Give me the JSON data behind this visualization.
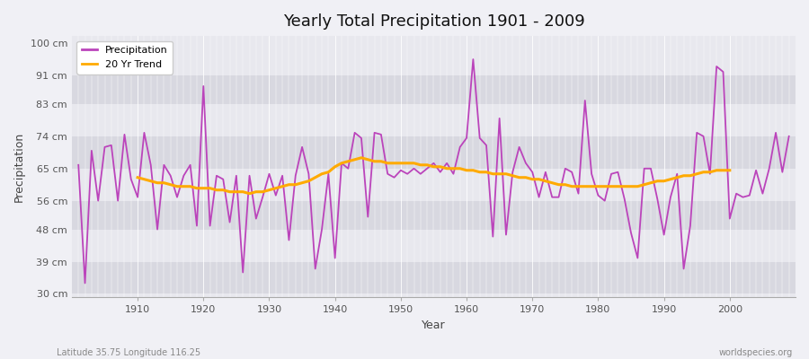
{
  "title": "Yearly Total Precipitation 1901 - 2009",
  "xlabel": "Year",
  "ylabel": "Precipitation",
  "subtitle_left": "Latitude 35.75 Longitude 116.25",
  "subtitle_right": "worldspecies.org",
  "years": [
    1901,
    1902,
    1903,
    1904,
    1905,
    1906,
    1907,
    1908,
    1909,
    1910,
    1911,
    1912,
    1913,
    1914,
    1915,
    1916,
    1917,
    1918,
    1919,
    1920,
    1921,
    1922,
    1923,
    1924,
    1925,
    1926,
    1927,
    1928,
    1929,
    1930,
    1931,
    1932,
    1933,
    1934,
    1935,
    1936,
    1937,
    1938,
    1939,
    1940,
    1941,
    1942,
    1943,
    1944,
    1945,
    1946,
    1947,
    1948,
    1949,
    1950,
    1951,
    1952,
    1953,
    1954,
    1955,
    1956,
    1957,
    1958,
    1959,
    1960,
    1961,
    1962,
    1963,
    1964,
    1965,
    1966,
    1967,
    1968,
    1969,
    1970,
    1971,
    1972,
    1973,
    1974,
    1975,
    1976,
    1977,
    1978,
    1979,
    1980,
    1981,
    1982,
    1983,
    1984,
    1985,
    1986,
    1987,
    1988,
    1989,
    1990,
    1991,
    1992,
    1993,
    1994,
    1995,
    1996,
    1997,
    1998,
    1999,
    2000,
    2001,
    2002,
    2003,
    2004,
    2005,
    2006,
    2007,
    2008,
    2009
  ],
  "precipitation": [
    66.0,
    33.0,
    70.0,
    56.0,
    71.0,
    71.5,
    56.0,
    74.5,
    62.0,
    57.0,
    75.0,
    66.0,
    48.0,
    66.0,
    63.0,
    57.0,
    63.0,
    66.0,
    49.0,
    88.0,
    49.0,
    63.0,
    62.0,
    50.0,
    63.0,
    36.0,
    63.0,
    51.0,
    57.0,
    63.5,
    57.5,
    63.0,
    45.0,
    63.0,
    71.0,
    63.5,
    37.0,
    48.0,
    63.5,
    40.0,
    66.5,
    65.0,
    75.0,
    73.5,
    51.5,
    75.0,
    74.5,
    63.5,
    62.5,
    64.5,
    63.5,
    65.0,
    63.5,
    65.0,
    66.5,
    64.0,
    66.5,
    63.5,
    71.0,
    73.5,
    95.5,
    73.5,
    71.5,
    46.0,
    79.0,
    46.5,
    64.0,
    71.0,
    66.5,
    64.0,
    57.0,
    64.0,
    57.0,
    57.0,
    65.0,
    64.0,
    58.0,
    84.0,
    63.5,
    57.5,
    56.0,
    63.5,
    64.0,
    56.5,
    47.0,
    40.0,
    65.0,
    65.0,
    56.5,
    46.5,
    57.0,
    63.5,
    37.0,
    49.0,
    75.0,
    74.0,
    63.5,
    93.5,
    92.0,
    51.0,
    58.0,
    57.0,
    57.5,
    64.5,
    58.0,
    65.0,
    75.0,
    64.0,
    74.0
  ],
  "trend_start_year": 1910,
  "trend": [
    62.5,
    62.0,
    61.5,
    61.0,
    61.0,
    60.5,
    60.0,
    60.0,
    60.0,
    59.5,
    59.5,
    59.5,
    59.0,
    59.0,
    58.5,
    58.5,
    58.5,
    58.0,
    58.5,
    58.5,
    59.0,
    59.5,
    60.0,
    60.5,
    60.5,
    61.0,
    61.5,
    62.5,
    63.5,
    64.0,
    65.5,
    66.5,
    67.0,
    67.5,
    68.0,
    67.5,
    67.0,
    67.0,
    66.5,
    66.5,
    66.5,
    66.5,
    66.5,
    66.0,
    66.0,
    65.5,
    65.5,
    65.0,
    65.0,
    65.0,
    64.5,
    64.5,
    64.0,
    64.0,
    63.5,
    63.5,
    63.5,
    63.0,
    62.5,
    62.5,
    62.0,
    62.0,
    61.5,
    61.0,
    60.5,
    60.5,
    60.0,
    60.0,
    60.0,
    60.0,
    60.0,
    60.0,
    60.0,
    60.0,
    60.0,
    60.0,
    60.0,
    60.5,
    61.0,
    61.5,
    61.5,
    62.0,
    62.5,
    63.0,
    63.0,
    63.5,
    64.0,
    64.0,
    64.5,
    64.5,
    64.5
  ],
  "precip_color": "#bb44bb",
  "trend_color": "#ffaa00",
  "bg_color": "#f0f0f5",
  "plot_bg_color_light": "#e8e8ee",
  "plot_bg_color_dark": "#d8d8e0",
  "yticks": [
    30,
    39,
    48,
    56,
    65,
    74,
    83,
    91,
    100
  ],
  "ytick_labels": [
    "30 cm",
    "39 cm",
    "48 cm",
    "56 cm",
    "65 cm",
    "74 cm",
    "83 cm",
    "91 cm",
    "100 cm"
  ],
  "ylim": [
    29,
    102
  ],
  "xlim": [
    1900,
    2010
  ],
  "xticks": [
    1910,
    1920,
    1930,
    1940,
    1950,
    1960,
    1970,
    1980,
    1990,
    2000
  ]
}
